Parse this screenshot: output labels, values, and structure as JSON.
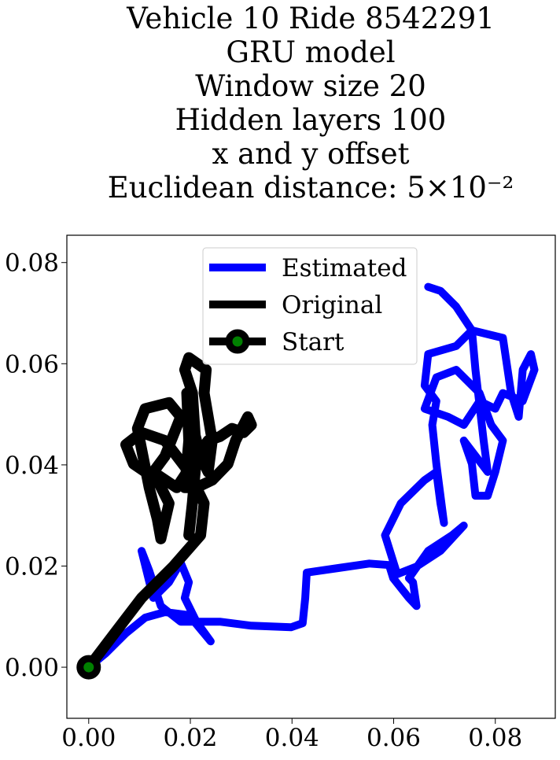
{
  "chart_data": {
    "type": "line",
    "title": [
      "Vehicle 10 Ride 8542291",
      "GRU model",
      "Window size 20",
      "Hidden layers 100",
      "x and y offset",
      "Euclidean distance: 5×10⁻²"
    ],
    "xlim": [
      -0.0043,
      0.0918
    ],
    "ylim": [
      -0.0101,
      0.0854
    ],
    "xticks": [
      {
        "value": 0,
        "label": "0.00"
      },
      {
        "value": 0.02,
        "label": "0.02"
      },
      {
        "value": 0.04,
        "label": "0.04"
      },
      {
        "value": 0.06,
        "label": "0.06"
      },
      {
        "value": 0.08,
        "label": "0.08"
      }
    ],
    "yticks": [
      {
        "value": 0,
        "label": "0.00"
      },
      {
        "value": 0.02,
        "label": "0.02"
      },
      {
        "value": 0.04,
        "label": "0.04"
      },
      {
        "value": 0.06,
        "label": "0.06"
      },
      {
        "value": 0.08,
        "label": "0.08"
      }
    ],
    "legend": "upper center",
    "series": [
      {
        "name": "Estimated",
        "color": "#0000ff",
        "x": [
          0,
          0.0034,
          0.0073,
          0.0111,
          0.015,
          0.0197,
          0.022,
          0.024,
          0.0212,
          0.0189,
          0.0197,
          0.0181,
          0.0158,
          0.0127,
          0.0104,
          0.0119,
          0.0142,
          0.0181,
          0.0258,
          0.032,
          0.0398,
          0.0421,
          0.0426,
          0.0429,
          0.0491,
          0.0552,
          0.0591,
          0.0599,
          0.063,
          0.0645,
          0.0638,
          0.063,
          0.0668,
          0.0715,
          0.0738,
          0.0692,
          0.0645,
          0.0607,
          0.0583,
          0.0614,
          0.0661,
          0.0684,
          0.0692,
          0.0699,
          0.0684,
          0.0676,
          0.0684,
          0.0661,
          0.0668,
          0.0723,
          0.0754,
          0.0815,
          0.0831,
          0.0846,
          0.0854,
          0.087,
          0.0877,
          0.0854,
          0.0815,
          0.08,
          0.0769,
          0.0738,
          0.0707,
          0.0661,
          0.0684,
          0.0723,
          0.0769,
          0.0792,
          0.0815,
          0.08,
          0.0785,
          0.0761,
          0.0754,
          0.0738,
          0.0785,
          0.0777,
          0.0761,
          0.0754,
          0.0723,
          0.0692,
          0.0668
        ],
        "values": [
          0,
          0.0028,
          0.0067,
          0.0098,
          0.0109,
          0.0103,
          0.0075,
          0.0051,
          0.009,
          0.0137,
          0.0168,
          0.0207,
          0.0168,
          0.0137,
          0.023,
          0.0191,
          0.0121,
          0.009,
          0.009,
          0.0082,
          0.0079,
          0.0087,
          0.0137,
          0.0187,
          0.0196,
          0.0205,
          0.0202,
          0.0176,
          0.0137,
          0.0121,
          0.0168,
          0.0176,
          0.023,
          0.0261,
          0.028,
          0.023,
          0.0199,
          0.0184,
          0.0261,
          0.0324,
          0.037,
          0.0386,
          0.0324,
          0.0285,
          0.0402,
          0.0479,
          0.0526,
          0.0557,
          0.0619,
          0.0635,
          0.0666,
          0.0651,
          0.0542,
          0.0495,
          0.0588,
          0.0619,
          0.0588,
          0.0526,
          0.0542,
          0.0511,
          0.0526,
          0.0479,
          0.0495,
          0.0511,
          0.0573,
          0.0588,
          0.0542,
          0.0479,
          0.0448,
          0.0386,
          0.0339,
          0.0339,
          0.0402,
          0.0448,
          0.0386,
          0.0448,
          0.0588,
          0.0666,
          0.0713,
          0.0744,
          0.0752
        ]
      },
      {
        "name": "Original",
        "color": "#000000",
        "x": [
          0,
          0.0057,
          0.0104,
          0.0166,
          0.022,
          0.0227,
          0.0197,
          0.015,
          0.0104,
          0.0073,
          0.0088,
          0.0135,
          0.0158,
          0.0142,
          0.0135,
          0.0119,
          0.0096,
          0.0111,
          0.0158,
          0.0181,
          0.015,
          0.0127,
          0.0173,
          0.0204,
          0.0235,
          0.0258,
          0.0282,
          0.0305,
          0.032,
          0.0313,
          0.0289,
          0.0274,
          0.0243,
          0.0212,
          0.0189,
          0.0197,
          0.0193,
          0.0204,
          0.022,
          0.0235,
          0.0243,
          0.0227,
          0.0231,
          0.0197,
          0.0189,
          0.0204,
          0.0212,
          0.0204,
          0.0197
        ],
        "values": [
          0,
          0.0075,
          0.0137,
          0.0199,
          0.0261,
          0.0324,
          0.0386,
          0.0448,
          0.0464,
          0.044,
          0.0402,
          0.037,
          0.0324,
          0.0254,
          0.0293,
          0.0355,
          0.0472,
          0.0511,
          0.0523,
          0.0495,
          0.0417,
          0.0386,
          0.0355,
          0.0402,
          0.0448,
          0.0456,
          0.0472,
          0.0464,
          0.0479,
          0.0495,
          0.0448,
          0.0402,
          0.037,
          0.0355,
          0.0355,
          0.0448,
          0.0542,
          0.0479,
          0.0417,
          0.0386,
          0.0448,
          0.0542,
          0.0588,
          0.0612,
          0.0588,
          0.0542,
          0.0417,
          0.0324,
          0.0261
        ]
      },
      {
        "name": "Start",
        "color": "#008000",
        "edgecolor": "#000000",
        "x": [
          0
        ],
        "values": [
          0
        ]
      }
    ]
  }
}
